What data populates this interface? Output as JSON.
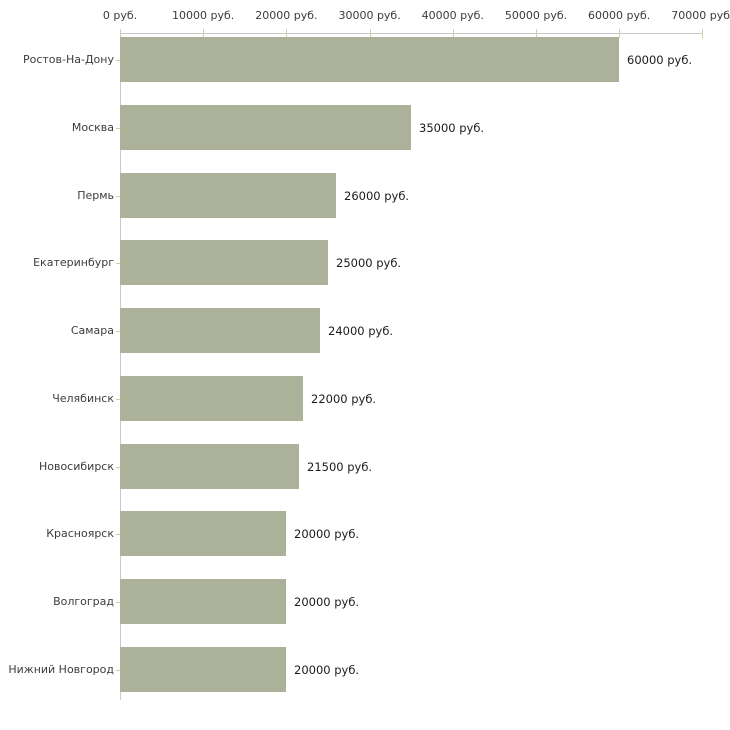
{
  "chart_data": {
    "type": "bar",
    "orientation": "horizontal",
    "title": "",
    "xlabel": "",
    "ylabel": "",
    "unit": "руб.",
    "categories": [
      "Ростов-На-Дону",
      "Москва",
      "Пермь",
      "Екатеринбург",
      "Самара",
      "Челябинск",
      "Новосибирск",
      "Красноярск",
      "Волгоград",
      "Нижний Новгород"
    ],
    "values": [
      60000,
      35000,
      26000,
      25000,
      24000,
      22000,
      21500,
      20000,
      20000,
      20000
    ],
    "value_labels": [
      "60000 руб.",
      "35000 руб.",
      "26000 руб.",
      "25000 руб.",
      "24000 руб.",
      "22000 руб.",
      "21500 руб.",
      "20000 руб.",
      "20000 руб.",
      "20000 руб."
    ],
    "x_tick_values": [
      0,
      10000,
      20000,
      30000,
      40000,
      50000,
      60000,
      70000
    ],
    "x_tick_labels": [
      "0 руб.",
      "10000 руб.",
      "20000 руб.",
      "30000 руб.",
      "40000 руб.",
      "50000 руб.",
      "60000 руб.",
      "70000 руб."
    ],
    "xlim": [
      0,
      70000
    ],
    "grid": false,
    "legend_position": "none",
    "colors": {
      "bar": "#acb29a",
      "axis_line": "#c8c8c8",
      "tick_mark": "#cfd2a4",
      "tick_label_text": "#3c3c3c",
      "category_text": "#3c3c3c",
      "value_text": "#1c1c1c",
      "background": "#ffffff"
    }
  }
}
